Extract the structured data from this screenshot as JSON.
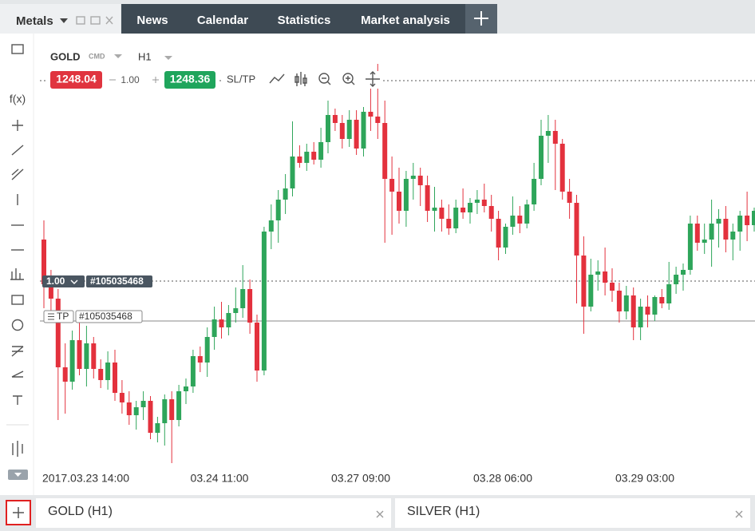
{
  "tabs": {
    "active": "Metals",
    "items": [
      "News",
      "Calendar",
      "Statistics",
      "Market analysis"
    ]
  },
  "chart_header": {
    "symbol": "GOLD",
    "kind": "CMD",
    "timeframe": "H1",
    "bid": "1248.04",
    "volume": "1.00",
    "ask": "1248.36",
    "sltp": "SL/TP"
  },
  "toolbar": {
    "fx": "f(x)"
  },
  "chart_data": {
    "type": "candlestick",
    "ylim": [
      1224.1,
      1250.1
    ],
    "up_color": "#2ea55a",
    "down_color": "#e3313d",
    "x_labels": [
      "2017.03.23 14:00",
      "03.24 11:00",
      "03.27 09:00",
      "03.28 06:00",
      "03.29 03:00"
    ],
    "candles": [
      [
        1238.1,
        1239.3,
        1233.8,
        1235.3
      ],
      [
        1235.3,
        1236.2,
        1233.0,
        1234.4
      ],
      [
        1234.4,
        1235.0,
        1226.8,
        1230.1
      ],
      [
        1230.1,
        1231.6,
        1227.2,
        1229.2
      ],
      [
        1229.2,
        1232.4,
        1228.7,
        1231.8
      ],
      [
        1231.8,
        1233.4,
        1229.6,
        1230.0
      ],
      [
        1230.0,
        1232.7,
        1228.9,
        1231.6
      ],
      [
        1231.6,
        1232.0,
        1229.4,
        1230.0
      ],
      [
        1230.0,
        1230.6,
        1228.8,
        1229.3
      ],
      [
        1229.3,
        1231.1,
        1228.7,
        1230.4
      ],
      [
        1230.4,
        1231.2,
        1228.0,
        1228.5
      ],
      [
        1228.5,
        1229.3,
        1227.2,
        1227.9
      ],
      [
        1227.9,
        1228.6,
        1226.5,
        1227.1
      ],
      [
        1227.1,
        1228.0,
        1226.2,
        1227.6
      ],
      [
        1227.6,
        1228.6,
        1226.8,
        1228.0
      ],
      [
        1228.0,
        1228.3,
        1225.6,
        1226.0
      ],
      [
        1226.0,
        1227.0,
        1225.4,
        1226.6
      ],
      [
        1226.6,
        1228.4,
        1225.2,
        1228.1
      ],
      [
        1228.1,
        1228.6,
        1224.1,
        1226.8
      ],
      [
        1226.8,
        1229.0,
        1226.4,
        1228.6
      ],
      [
        1228.6,
        1229.4,
        1227.8,
        1228.9
      ],
      [
        1228.9,
        1231.2,
        1228.5,
        1230.8
      ],
      [
        1230.8,
        1231.4,
        1229.8,
        1230.4
      ],
      [
        1230.4,
        1232.6,
        1229.5,
        1232.0
      ],
      [
        1232.0,
        1233.9,
        1231.2,
        1233.1
      ],
      [
        1233.1,
        1234.2,
        1231.9,
        1232.6
      ],
      [
        1232.6,
        1234.0,
        1232.1,
        1233.5
      ],
      [
        1233.5,
        1235.1,
        1232.9,
        1233.8
      ],
      [
        1233.8,
        1236.5,
        1233.2,
        1235.0
      ],
      [
        1235.0,
        1235.6,
        1232.2,
        1232.9
      ],
      [
        1232.9,
        1233.4,
        1229.2,
        1229.9
      ],
      [
        1229.9,
        1238.9,
        1229.6,
        1238.6
      ],
      [
        1238.6,
        1240.3,
        1237.5,
        1239.3
      ],
      [
        1239.3,
        1241.2,
        1237.9,
        1240.6
      ],
      [
        1240.6,
        1242.2,
        1239.7,
        1241.3
      ],
      [
        1241.3,
        1245.5,
        1240.8,
        1243.3
      ],
      [
        1243.3,
        1244.0,
        1242.6,
        1242.9
      ],
      [
        1242.9,
        1244.1,
        1242.4,
        1243.6
      ],
      [
        1243.6,
        1244.2,
        1242.8,
        1243.1
      ],
      [
        1243.1,
        1245.1,
        1242.6,
        1244.2
      ],
      [
        1244.2,
        1246.8,
        1243.5,
        1245.9
      ],
      [
        1245.9,
        1246.3,
        1244.9,
        1245.4
      ],
      [
        1245.4,
        1245.9,
        1243.8,
        1244.4
      ],
      [
        1244.4,
        1246.2,
        1243.9,
        1245.6
      ],
      [
        1245.6,
        1246.2,
        1243.4,
        1243.8
      ],
      [
        1243.8,
        1246.4,
        1243.3,
        1246.1
      ],
      [
        1246.1,
        1248.6,
        1244.9,
        1245.8
      ],
      [
        1245.8,
        1249.1,
        1244.4,
        1245.4
      ],
      [
        1245.4,
        1246.8,
        1237.9,
        1241.9
      ],
      [
        1241.9,
        1243.3,
        1238.4,
        1241.1
      ],
      [
        1241.1,
        1242.6,
        1239.1,
        1239.9
      ],
      [
        1239.9,
        1242.4,
        1238.9,
        1241.9
      ],
      [
        1241.9,
        1242.9,
        1240.6,
        1242.1
      ],
      [
        1242.1,
        1242.6,
        1240.2,
        1241.5
      ],
      [
        1241.5,
        1242.1,
        1239.2,
        1239.9
      ],
      [
        1239.9,
        1241.4,
        1238.6,
        1240.1
      ],
      [
        1240.1,
        1240.6,
        1238.6,
        1239.4
      ],
      [
        1239.4,
        1240.3,
        1238.4,
        1238.8
      ],
      [
        1238.8,
        1240.6,
        1238.5,
        1240.1
      ],
      [
        1240.1,
        1241.3,
        1239.4,
        1239.8
      ],
      [
        1239.8,
        1240.7,
        1239.1,
        1240.4
      ],
      [
        1240.4,
        1241.2,
        1239.7,
        1240.6
      ],
      [
        1240.6,
        1241.6,
        1239.8,
        1240.2
      ],
      [
        1240.2,
        1240.9,
        1238.6,
        1239.4
      ],
      [
        1239.4,
        1239.9,
        1236.8,
        1237.6
      ],
      [
        1237.6,
        1239.1,
        1237.2,
        1238.9
      ],
      [
        1238.9,
        1240.8,
        1238.4,
        1239.6
      ],
      [
        1239.6,
        1240.2,
        1238.5,
        1239.1
      ],
      [
        1239.1,
        1240.6,
        1238.8,
        1240.3
      ],
      [
        1240.3,
        1242.9,
        1239.9,
        1241.9
      ],
      [
        1241.9,
        1245.6,
        1241.5,
        1244.6
      ],
      [
        1244.6,
        1245.9,
        1242.9,
        1244.9
      ],
      [
        1244.9,
        1245.6,
        1241.2,
        1244.1
      ],
      [
        1244.1,
        1244.4,
        1240.6,
        1241.1
      ],
      [
        1241.1,
        1241.9,
        1239.4,
        1240.4
      ],
      [
        1240.4,
        1240.9,
        1234.1,
        1237.1
      ],
      [
        1237.1,
        1238.3,
        1232.2,
        1233.9
      ],
      [
        1233.9,
        1236.9,
        1233.6,
        1235.9
      ],
      [
        1235.9,
        1236.8,
        1234.9,
        1236.1
      ],
      [
        1236.1,
        1237.6,
        1234.6,
        1235.4
      ],
      [
        1235.4,
        1236.3,
        1234.2,
        1234.9
      ],
      [
        1234.9,
        1235.4,
        1232.9,
        1233.6
      ],
      [
        1233.6,
        1235.2,
        1233.1,
        1234.6
      ],
      [
        1234.6,
        1235.1,
        1231.8,
        1232.6
      ],
      [
        1232.6,
        1234.4,
        1231.8,
        1233.9
      ],
      [
        1233.9,
        1234.6,
        1232.6,
        1233.4
      ],
      [
        1233.4,
        1234.6,
        1233.0,
        1234.5
      ],
      [
        1234.5,
        1235.0,
        1233.8,
        1234.1
      ],
      [
        1234.1,
        1236.7,
        1233.7,
        1235.3
      ],
      [
        1235.3,
        1236.4,
        1234.7,
        1235.9
      ],
      [
        1235.9,
        1236.6,
        1234.9,
        1236.2
      ],
      [
        1236.2,
        1239.6,
        1235.9,
        1239.1
      ],
      [
        1239.1,
        1239.6,
        1237.4,
        1237.9
      ],
      [
        1237.9,
        1239.1,
        1237.2,
        1238.1
      ],
      [
        1238.1,
        1240.6,
        1236.4,
        1239.1
      ],
      [
        1239.1,
        1240.0,
        1237.6,
        1239.4
      ],
      [
        1239.4,
        1240.2,
        1237.3,
        1238.1
      ],
      [
        1238.1,
        1239.1,
        1236.8,
        1238.6
      ],
      [
        1238.6,
        1239.9,
        1237.4,
        1239.6
      ],
      [
        1239.6,
        1241.1,
        1238.0,
        1239.0
      ],
      [
        1239.0,
        1240.1,
        1238.6,
        1239.9
      ]
    ]
  },
  "order_line": {
    "volume": "1.00",
    "id": "#105035468"
  },
  "tp_line": {
    "label": "TP",
    "id": "#105035468"
  },
  "bottom_tabs": [
    "GOLD (H1)",
    "SILVER (H1)"
  ]
}
